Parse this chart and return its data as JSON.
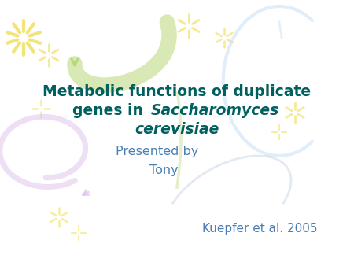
{
  "background_color": "#ffffff",
  "title_line1": "Metabolic functions of duplicate",
  "title_line2_normal": "genes in ",
  "title_line2_italic": "Saccharomyces",
  "title_line3_italic": "cerevisiae",
  "title_color": "#005f5f",
  "subtitle_line1": "Presented by",
  "subtitle_line2": "Tony",
  "subtitle_color": "#4a7fb5",
  "citation": "Kuepfer et al. 2005",
  "citation_color": "#4a7fb5",
  "title_fontsize": 13.5,
  "subtitle_fontsize": 11.5,
  "citation_fontsize": 11,
  "green_ribbon_color": "#b8d878",
  "green_ribbon_alpha": 0.55,
  "blue_circle_color": "#aaccee",
  "blue_circle_alpha": 0.35,
  "lavender_color": "#d8b8e8",
  "lavender_alpha": 0.45,
  "yellow_color": "#f0e060",
  "yellow_alpha": 0.75,
  "green_line_color": "#b8d878",
  "blue_line_color": "#88aacc"
}
